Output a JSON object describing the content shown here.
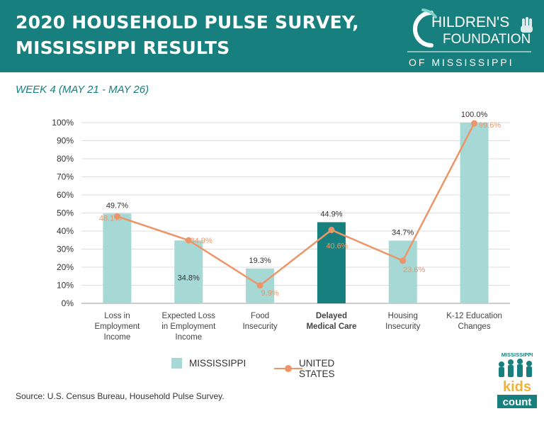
{
  "header": {
    "title_line1": "2020 HOUSEHOLD PULSE SURVEY,",
    "title_line2": "MISSISSIPPI RESULTS"
  },
  "logo": {
    "text_line1": "HILDREN'S",
    "text_line2": "FOUNDATION",
    "text_line3": "OF MISSISSIPPI"
  },
  "subtitle": "WEEK 4 (MAY 21 - MAY 26)",
  "chart_data": {
    "type": "bar",
    "categories": [
      "Loss in\nEmployment\nIncome",
      "Expected Loss\nin Employment\nIncome",
      "Food\nInsecurity",
      "Delayed\nMedical Care",
      "Housing\nInsecurity",
      "K-12 Education\nChanges"
    ],
    "highlight_index": 3,
    "ylim": [
      0,
      100
    ],
    "yticks": [
      "0%",
      "10%",
      "20%",
      "30%",
      "40%",
      "50%",
      "60%",
      "70%",
      "80%",
      "90%",
      "100%"
    ],
    "grid": true,
    "series": [
      {
        "name": "MISSISSIPPI",
        "type": "bar",
        "values": [
          49.7,
          34.8,
          19.3,
          44.9,
          34.7,
          100.0
        ],
        "labels": [
          "49.7%",
          "34.8%",
          "19.3%",
          "44.9%",
          "34.7%",
          "100.0%"
        ],
        "color": "#a6d8d6",
        "highlight_color": "#17807f"
      },
      {
        "name": "UNITED STATES",
        "type": "line",
        "values": [
          48.1,
          34.9,
          9.9,
          40.6,
          23.6,
          99.6
        ],
        "labels": [
          "48.1%",
          "34.9%",
          "9.9%",
          "40.6%",
          "23.6%",
          "99.6%"
        ],
        "color": "#ec9568"
      }
    ],
    "legend_position": "bottom"
  },
  "legend": {
    "mississippi": "MISSISSIPPI",
    "united_states": "UNITED STATES"
  },
  "source": "Source:  U.S. Census Bureau, Household Pulse Survey.",
  "kids_count_logo": {
    "line1": "MISSISSIPPI",
    "line2": "kids",
    "line3": "count"
  }
}
